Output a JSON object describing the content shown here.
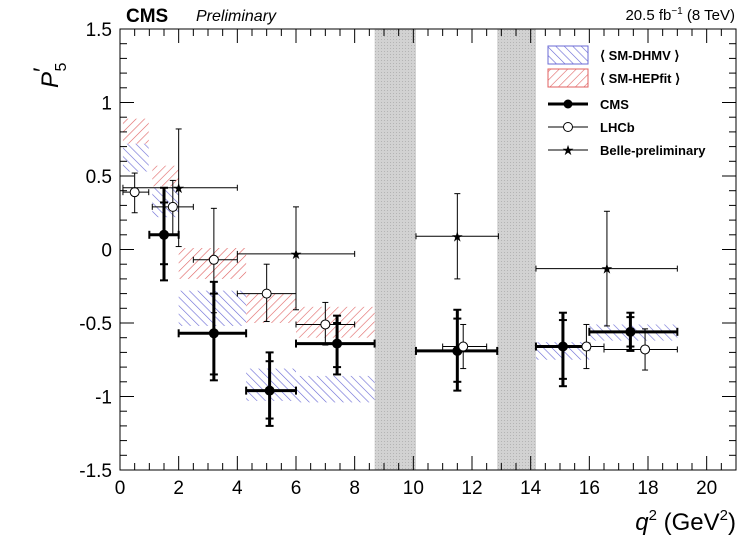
{
  "header": {
    "experiment": "CMS",
    "status": "Preliminary",
    "luminosity": "20.5 fb",
    "lumi_exp": "−1",
    "energy": " (8 TeV)"
  },
  "axes": {
    "ylabel_main": "P",
    "ylabel_prime": "′",
    "ylabel_sub": "5",
    "xlabel_main": "q",
    "xlabel_sup": "2",
    "xlabel_unit_open": " (GeV",
    "xlabel_unit_sup": "2",
    "xlabel_unit_close": ")"
  },
  "legend": {
    "sm_dhmv": "⟨ SM-DHMV ⟩",
    "sm_hepfit": "⟨ SM-HEPfit ⟩",
    "cms": "CMS",
    "lhcb": "LHCb",
    "belle": "Belle-preliminary"
  },
  "colors": {
    "dhmv": "#6b6bd6",
    "hepfit": "#e06060",
    "veto": "#c8c8c8"
  },
  "chart_data": {
    "type": "scatter",
    "xlabel": "q2 (GeV2)",
    "ylabel": "P'5",
    "xlim": [
      0,
      21
    ],
    "ylim": [
      -1.5,
      1.5
    ],
    "xticks": [
      0,
      2,
      4,
      6,
      8,
      10,
      12,
      14,
      16,
      18,
      20
    ],
    "xtick_labels": [
      "0",
      "2",
      "4",
      "6",
      "8",
      "10",
      "12",
      "14",
      "16",
      "18",
      "20"
    ],
    "yticks": [
      -1.5,
      -1,
      -0.5,
      0,
      0.5,
      1,
      1.5
    ],
    "ytick_labels": [
      "-1.5",
      "-1",
      "-0.5",
      "0",
      "0.5",
      "1",
      "1.5"
    ],
    "vetoed_regions": [
      [
        8.68,
        10.09
      ],
      [
        12.86,
        14.18
      ]
    ],
    "series": [
      {
        "name": "⟨ SM-DHMV ⟩",
        "style": "band",
        "bands": [
          {
            "xlo": 0.1,
            "xhi": 0.98,
            "ylo": 0.53,
            "yhi": 0.72
          },
          {
            "xlo": 1.1,
            "xhi": 2.0,
            "ylo": 0.22,
            "yhi": 0.42
          },
          {
            "xlo": 2.0,
            "xhi": 4.3,
            "ylo": -0.52,
            "yhi": -0.28
          },
          {
            "xlo": 4.3,
            "xhi": 6.0,
            "ylo": -1.03,
            "yhi": -0.81
          },
          {
            "xlo": 6.0,
            "xhi": 8.68,
            "ylo": -1.04,
            "yhi": -0.86
          },
          {
            "xlo": 14.18,
            "xhi": 16.0,
            "ylo": -0.75,
            "yhi": -0.63
          },
          {
            "xlo": 16.0,
            "xhi": 19.0,
            "ylo": -0.62,
            "yhi": -0.51
          }
        ]
      },
      {
        "name": "⟨ SM-HEPfit ⟩",
        "style": "band",
        "bands": [
          {
            "xlo": 0.1,
            "xhi": 0.98,
            "ylo": 0.72,
            "yhi": 0.89
          },
          {
            "xlo": 1.1,
            "xhi": 2.0,
            "ylo": 0.43,
            "yhi": 0.57
          },
          {
            "xlo": 2.0,
            "xhi": 4.3,
            "ylo": -0.2,
            "yhi": 0.01
          },
          {
            "xlo": 4.3,
            "xhi": 6.0,
            "ylo": -0.5,
            "yhi": -0.3
          },
          {
            "xlo": 6.0,
            "xhi": 8.68,
            "ylo": -0.6,
            "yhi": -0.39
          }
        ]
      },
      {
        "name": "CMS",
        "style": "filled-circle",
        "points": [
          {
            "x": 1.5,
            "xlo": 1.0,
            "xhi": 2.0,
            "y": 0.1,
            "ylo": -0.21,
            "yhi": 0.42,
            "ystat_lo": -0.1,
            "ystat_hi": 0.32
          },
          {
            "x": 3.2,
            "xlo": 2.0,
            "xhi": 4.3,
            "y": -0.57,
            "ylo": -0.89,
            "yhi": -0.22,
            "ystat_lo": -0.85,
            "ystat_hi": -0.3
          },
          {
            "x": 5.1,
            "xlo": 4.3,
            "xhi": 6.0,
            "y": -0.96,
            "ylo": -1.2,
            "yhi": -0.7,
            "ystat_lo": -1.15,
            "ystat_hi": -0.76
          },
          {
            "x": 7.4,
            "xlo": 6.0,
            "xhi": 8.68,
            "y": -0.64,
            "ylo": -0.85,
            "yhi": -0.45,
            "ystat_lo": -0.8,
            "ystat_hi": -0.5
          },
          {
            "x": 11.5,
            "xlo": 10.09,
            "xhi": 12.86,
            "y": -0.69,
            "ylo": -0.96,
            "yhi": -0.41,
            "ystat_lo": -0.9,
            "ystat_hi": -0.47
          },
          {
            "x": 15.1,
            "xlo": 14.18,
            "xhi": 16.0,
            "y": -0.66,
            "ylo": -0.93,
            "yhi": -0.43,
            "ystat_lo": -0.88,
            "ystat_hi": -0.48
          },
          {
            "x": 17.4,
            "xlo": 16.0,
            "xhi": 19.0,
            "y": -0.56,
            "ylo": -0.69,
            "yhi": -0.43,
            "ystat_lo": -0.66,
            "ystat_hi": -0.46
          }
        ]
      },
      {
        "name": "LHCb",
        "style": "open-circle",
        "points": [
          {
            "x": 0.5,
            "xlo": 0.1,
            "xhi": 0.98,
            "y": 0.39,
            "ylo": 0.25,
            "yhi": 0.52
          },
          {
            "x": 1.8,
            "xlo": 1.1,
            "xhi": 2.5,
            "y": 0.29,
            "ylo": 0.1,
            "yhi": 0.47
          },
          {
            "x": 3.2,
            "xlo": 2.5,
            "xhi": 4.0,
            "y": -0.07,
            "ylo": -0.43,
            "yhi": 0.28
          },
          {
            "x": 5.0,
            "xlo": 4.0,
            "xhi": 6.0,
            "y": -0.3,
            "ylo": -0.49,
            "yhi": -0.1
          },
          {
            "x": 7.0,
            "xlo": 6.0,
            "xhi": 8.0,
            "y": -0.51,
            "ylo": -0.65,
            "yhi": -0.36
          },
          {
            "x": 11.7,
            "xlo": 11.0,
            "xhi": 12.5,
            "y": -0.66,
            "ylo": -0.81,
            "yhi": -0.51
          },
          {
            "x": 15.9,
            "xlo": 15.0,
            "xhi": 16.5,
            "y": -0.66,
            "ylo": -0.81,
            "yhi": -0.51
          },
          {
            "x": 17.9,
            "xlo": 16.5,
            "xhi": 19.0,
            "y": -0.68,
            "ylo": -0.82,
            "yhi": -0.54
          }
        ]
      },
      {
        "name": "Belle-preliminary",
        "style": "star",
        "points": [
          {
            "x": 2.0,
            "xlo": 0.1,
            "xhi": 4.0,
            "y": 0.42,
            "ylo": 0.02,
            "yhi": 0.82
          },
          {
            "x": 6.0,
            "xlo": 4.0,
            "xhi": 8.0,
            "y": -0.03,
            "ylo": -0.41,
            "yhi": 0.29
          },
          {
            "x": 11.5,
            "xlo": 10.09,
            "xhi": 12.9,
            "y": 0.09,
            "ylo": -0.2,
            "yhi": 0.38
          },
          {
            "x": 16.6,
            "xlo": 14.18,
            "xhi": 19.0,
            "y": -0.13,
            "ylo": -0.52,
            "yhi": 0.26
          }
        ]
      }
    ],
    "legend_position": "top-right"
  }
}
